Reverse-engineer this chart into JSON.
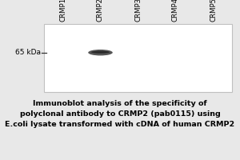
{
  "bg_color": "#e8e8e8",
  "blot_bg": "#ffffff",
  "blot_border": "#c0c0c0",
  "lane_labels": [
    "CRMP1",
    "CRMP2",
    "CRMP3",
    "CRMP4",
    "CRMP5"
  ],
  "band_color": "#555555",
  "band_dark_color": "#222222",
  "marker_label": "65 kDa",
  "marker_line_color": "#333333",
  "caption_lines": [
    "Immunoblot analysis of the specificity of",
    "polyclonal antibody to CRMP2 (pab0115) using",
    "E.coli lysate transformed with cDNA of human CRMP2"
  ],
  "caption_fontsize": 6.8,
  "label_fontsize": 6.2,
  "marker_fontsize": 6.5
}
